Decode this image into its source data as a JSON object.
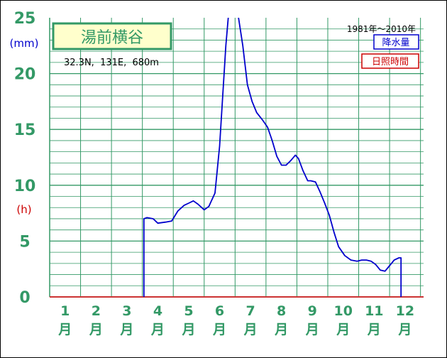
{
  "chart_data": {
    "type": "line",
    "title": "湯前横谷",
    "location": "32.3N,  131E,  680m",
    "period": "1981年〜2010年",
    "legend": [
      {
        "label": "降水量",
        "color": "#0000cc"
      },
      {
        "label": "日照時間",
        "color": "#cc0000"
      }
    ],
    "y_unit_primary": "(mm)",
    "y_unit_secondary": "(h)",
    "y_ticks": [
      "0",
      "5",
      "10",
      "15",
      "20",
      "25"
    ],
    "ylim": [
      0,
      25
    ],
    "x_ticks": [
      {
        "num": "1",
        "unit": "月"
      },
      {
        "num": "2",
        "unit": "月"
      },
      {
        "num": "3",
        "unit": "月"
      },
      {
        "num": "4",
        "unit": "月"
      },
      {
        "num": "5",
        "unit": "月"
      },
      {
        "num": "6",
        "unit": "月"
      },
      {
        "num": "7",
        "unit": "月"
      },
      {
        "num": "8",
        "unit": "月"
      },
      {
        "num": "9",
        "unit": "月"
      },
      {
        "num": "10",
        "unit": "月"
      },
      {
        "num": "11",
        "unit": "月"
      },
      {
        "num": "12",
        "unit": "月"
      }
    ],
    "xlim": [
      0.5,
      12.6
    ],
    "grid": true,
    "series": [
      {
        "name": "降水量",
        "color": "#0000cc",
        "x": [
          3.55,
          3.55,
          3.65,
          3.85,
          4.0,
          4.25,
          4.45,
          4.65,
          4.85,
          5.0,
          5.15,
          5.3,
          5.5,
          5.65,
          5.85,
          6.0,
          6.1,
          6.2,
          6.28,
          6.35,
          6.5,
          6.6,
          6.75,
          6.9,
          7.05,
          7.2,
          7.4,
          7.55,
          7.7,
          7.85,
          8.0,
          8.15,
          8.3,
          8.45,
          8.55,
          8.7,
          8.85,
          8.95,
          9.1,
          9.25,
          9.4,
          9.55,
          9.7,
          9.85,
          10.05,
          10.25,
          10.45,
          10.6,
          10.75,
          10.9,
          11.05,
          11.2,
          11.35,
          11.5,
          11.65,
          11.8,
          11.87,
          11.87
        ],
        "y": [
          0,
          7.0,
          7.1,
          7.0,
          6.6,
          6.7,
          6.8,
          7.7,
          8.2,
          8.4,
          8.6,
          8.3,
          7.8,
          8.1,
          9.3,
          13.5,
          18.0,
          22.5,
          25.0,
          25.5,
          25.5,
          25.2,
          22.5,
          19.0,
          17.5,
          16.5,
          15.8,
          15.2,
          14.0,
          12.6,
          11.8,
          11.8,
          12.2,
          12.7,
          12.4,
          11.3,
          10.4,
          10.4,
          10.3,
          9.4,
          8.4,
          7.3,
          5.8,
          4.5,
          3.7,
          3.3,
          3.2,
          3.3,
          3.3,
          3.2,
          2.9,
          2.4,
          2.3,
          2.8,
          3.3,
          3.5,
          3.5,
          0
        ]
      }
    ]
  }
}
